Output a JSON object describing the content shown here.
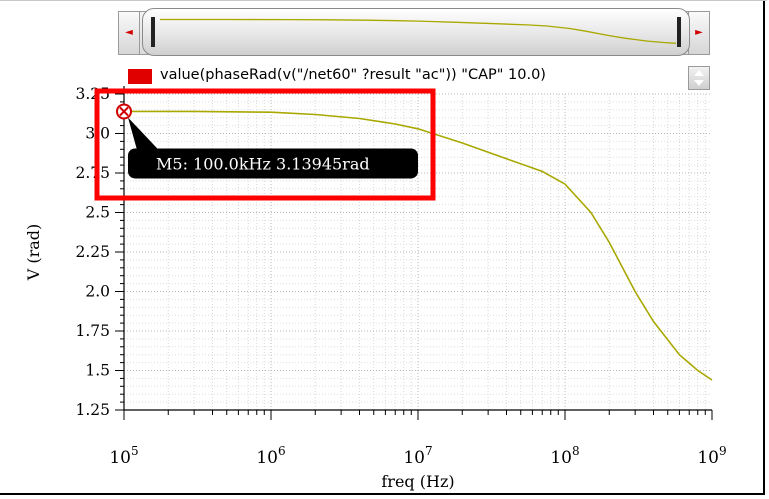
{
  "legend": {
    "label": "value(phaseRad(v(\"/net60\" ?result \"ac\")) \"CAP\" 10.0)",
    "color": "#e00000"
  },
  "marker": {
    "label": "M5: 100.0kHz 3.13945rad",
    "x": 100000,
    "y": 3.13945,
    "highlight_color": "#ff0000"
  },
  "chart_data": {
    "type": "line",
    "xlabel": "freq (Hz)",
    "ylabel": "V (rad)",
    "x_scale": "log",
    "xlim": [
      100000,
      1000000000
    ],
    "ylim": [
      1.25,
      3.25
    ],
    "y_ticks": [
      "1.25",
      "1.5",
      "1.75",
      "2.0",
      "2.25",
      "2.5",
      "2.75",
      "3.0",
      "3.25"
    ],
    "y_tick_values": [
      1.25,
      1.5,
      1.75,
      2.0,
      2.25,
      2.5,
      2.75,
      3.0,
      3.25
    ],
    "x_tick_values": [
      100000,
      1000000,
      10000000,
      100000000,
      1000000000
    ],
    "x_tick_base": "10",
    "x_tick_exponents": [
      "5",
      "6",
      "7",
      "8",
      "9"
    ],
    "grid": true,
    "line_color": "#a8a800",
    "series": [
      {
        "x": [
          100000,
          300000,
          1000000,
          2000000,
          4000000,
          7000000,
          10000000,
          20000000,
          40000000,
          70000000,
          100000000,
          150000000,
          200000000,
          300000000,
          400000000,
          600000000,
          800000000,
          1000000000
        ],
        "values": [
          3.14,
          3.14,
          3.135,
          3.12,
          3.095,
          3.06,
          3.03,
          2.94,
          2.84,
          2.76,
          2.68,
          2.5,
          2.31,
          2.0,
          1.81,
          1.6,
          1.5,
          1.44
        ]
      }
    ]
  },
  "scrollbar": {
    "left_arrow": "◄",
    "right_arrow": "►"
  },
  "legend_spin": {
    "up_icon": "spin-up-icon",
    "down_icon": "spin-down-icon"
  }
}
